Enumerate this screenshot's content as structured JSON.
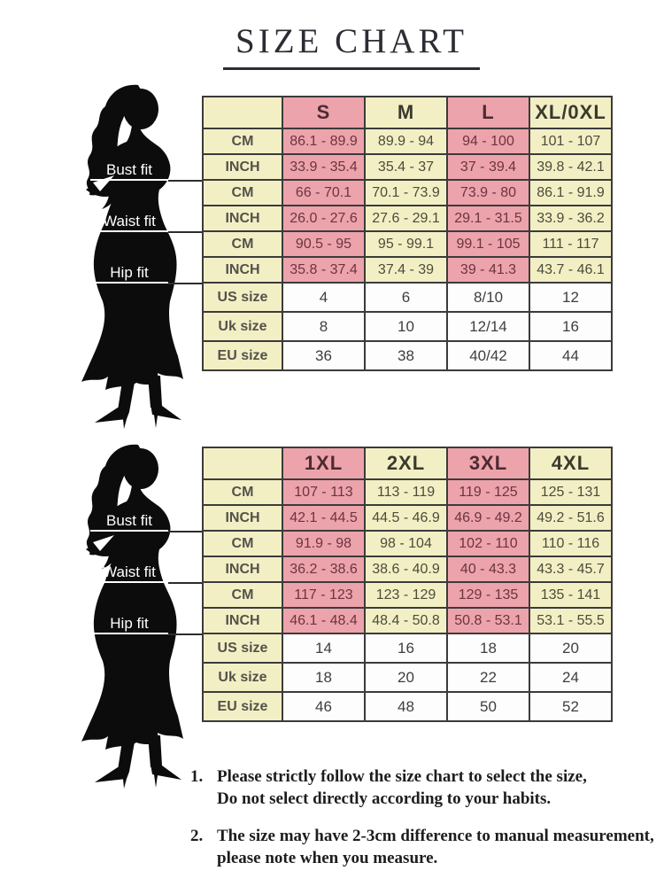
{
  "title": "SIZE CHART",
  "fit_labels": [
    "Bust fit",
    "Waist fit",
    "Hip fit"
  ],
  "colors": {
    "pink": "#eda3ab",
    "cream": "#f3efc5",
    "table_border": "#3b3b3b",
    "silhouette": "#0c0c0c",
    "title_text": "#2c2c34"
  },
  "chart_data": [
    {
      "type": "table",
      "name": "size-chart-regular",
      "columns": [
        "S",
        "M",
        "L",
        "XL/0XL"
      ],
      "rows": [
        {
          "label": "CM",
          "kind": "measure",
          "group": "Bust fit",
          "values": [
            "86.1 - 89.9",
            "89.9 - 94",
            "94 - 100",
            "101 - 107"
          ]
        },
        {
          "label": "INCH",
          "kind": "measure",
          "group": "Bust fit",
          "values": [
            "33.9 - 35.4",
            "35.4 - 37",
            "37 - 39.4",
            "39.8 - 42.1"
          ]
        },
        {
          "label": "CM",
          "kind": "measure",
          "group": "Waist fit",
          "values": [
            "66 - 70.1",
            "70.1 - 73.9",
            "73.9 - 80",
            "86.1 - 91.9"
          ]
        },
        {
          "label": "INCH",
          "kind": "measure",
          "group": "Waist fit",
          "values": [
            "26.0 - 27.6",
            "27.6 - 29.1",
            "29.1 - 31.5",
            "33.9 - 36.2"
          ]
        },
        {
          "label": "CM",
          "kind": "measure",
          "group": "Hip fit",
          "values": [
            "90.5 - 95",
            "95 - 99.1",
            "99.1 - 105",
            "111 - 117"
          ]
        },
        {
          "label": "INCH",
          "kind": "measure",
          "group": "Hip fit",
          "values": [
            "35.8 - 37.4",
            "37.4 - 39",
            "39 - 41.3",
            "43.7 - 46.1"
          ]
        },
        {
          "label": "US size",
          "kind": "size",
          "values": [
            "4",
            "6",
            "8/10",
            "12"
          ]
        },
        {
          "label": "Uk size",
          "kind": "size",
          "values": [
            "8",
            "10",
            "12/14",
            "16"
          ]
        },
        {
          "label": "EU size",
          "kind": "size",
          "values": [
            "36",
            "38",
            "40/42",
            "44"
          ]
        }
      ]
    },
    {
      "type": "table",
      "name": "size-chart-plus",
      "columns": [
        "1XL",
        "2XL",
        "3XL",
        "4XL"
      ],
      "rows": [
        {
          "label": "CM",
          "kind": "measure",
          "group": "Bust fit",
          "values": [
            "107 - 113",
            "113 - 119",
            "119 - 125",
            "125 - 131"
          ]
        },
        {
          "label": "INCH",
          "kind": "measure",
          "group": "Bust fit",
          "values": [
            "42.1 - 44.5",
            "44.5 - 46.9",
            "46.9 - 49.2",
            "49.2 - 51.6"
          ]
        },
        {
          "label": "CM",
          "kind": "measure",
          "group": "Waist fit",
          "values": [
            "91.9 - 98",
            "98 - 104",
            "102 - 110",
            "110 - 116"
          ]
        },
        {
          "label": "INCH",
          "kind": "measure",
          "group": "Waist fit",
          "values": [
            "36.2 - 38.6",
            "38.6 - 40.9",
            "40 - 43.3",
            "43.3 - 45.7"
          ]
        },
        {
          "label": "CM",
          "kind": "measure",
          "group": "Hip fit",
          "values": [
            "117 - 123",
            "123 - 129",
            "129 - 135",
            "135 - 141"
          ]
        },
        {
          "label": "INCH",
          "kind": "measure",
          "group": "Hip fit",
          "values": [
            "46.1 - 48.4",
            "48.4 - 50.8",
            "50.8 - 53.1",
            "53.1 - 55.5"
          ]
        },
        {
          "label": "US size",
          "kind": "size",
          "values": [
            "14",
            "16",
            "18",
            "20"
          ]
        },
        {
          "label": "Uk size",
          "kind": "size",
          "values": [
            "18",
            "20",
            "22",
            "24"
          ]
        },
        {
          "label": "EU size",
          "kind": "size",
          "values": [
            "46",
            "48",
            "50",
            "52"
          ]
        }
      ]
    }
  ],
  "notes": [
    {
      "number": "1.",
      "line1": "Please strictly follow the size chart to select the size,",
      "line2": "Do not select directly according to your habits."
    },
    {
      "number": "2.",
      "line1": "The size may have 2-3cm difference  to manual measurement,",
      "line2": "please note when you measure."
    }
  ]
}
